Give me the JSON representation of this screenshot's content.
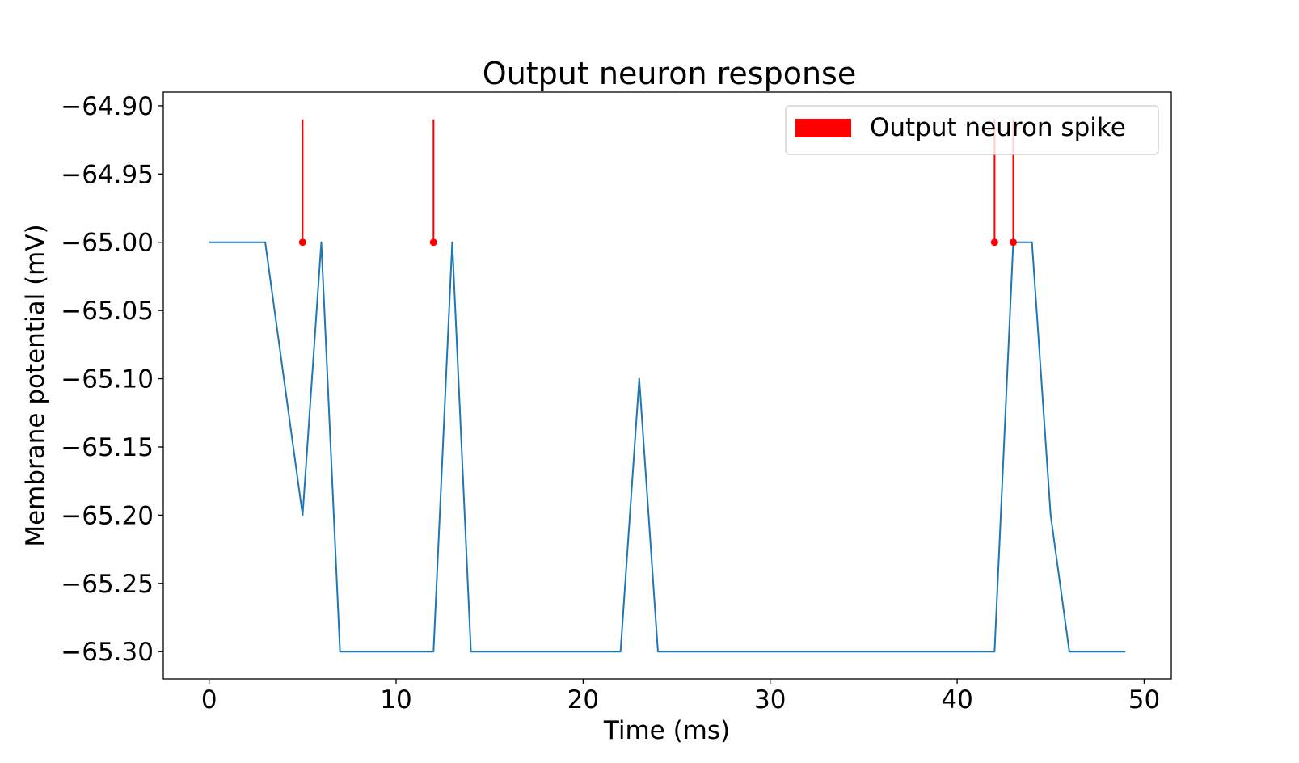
{
  "chart_data": {
    "type": "line",
    "title": "Output neuron response",
    "xlabel": "Time (ms)",
    "ylabel": "Membrane potential (mV)",
    "xlim": [
      -2.45,
      51.45
    ],
    "ylim": [
      -65.32,
      -64.89
    ],
    "xticks": [
      0,
      10,
      20,
      30,
      40,
      50
    ],
    "xtick_labels": [
      "0",
      "10",
      "20",
      "30",
      "40",
      "50"
    ],
    "yticks": [
      -64.9,
      -64.95,
      -65.0,
      -65.05,
      -65.1,
      -65.15,
      -65.2,
      -65.25,
      -65.3
    ],
    "ytick_labels": [
      "−64.90",
      "−64.95",
      "−65.00",
      "−65.05",
      "−65.10",
      "−65.15",
      "−65.20",
      "−65.25",
      "−65.30"
    ],
    "grid": false,
    "legend_position": "top-right",
    "series": [
      {
        "color": "#1f77b4",
        "x": [
          0,
          1,
          2,
          3,
          4,
          5,
          6,
          7,
          8,
          9,
          10,
          11,
          12,
          13,
          14,
          15,
          16,
          17,
          18,
          19,
          20,
          21,
          22,
          23,
          24,
          25,
          26,
          27,
          28,
          29,
          30,
          31,
          32,
          33,
          34,
          35,
          36,
          37,
          38,
          39,
          40,
          41,
          42,
          43,
          44,
          45,
          46,
          47,
          48,
          49
        ],
        "y": [
          -65.0,
          -65.0,
          -65.0,
          -65.0,
          -65.1,
          -65.2,
          -65.0,
          -65.3,
          -65.3,
          -65.3,
          -65.3,
          -65.3,
          -65.3,
          -65.0,
          -65.3,
          -65.3,
          -65.3,
          -65.3,
          -65.3,
          -65.3,
          -65.3,
          -65.3,
          -65.3,
          -65.1,
          -65.3,
          -65.3,
          -65.3,
          -65.3,
          -65.3,
          -65.3,
          -65.3,
          -65.3,
          -65.3,
          -65.3,
          -65.3,
          -65.3,
          -65.3,
          -65.3,
          -65.3,
          -65.3,
          -65.3,
          -65.3,
          -65.3,
          -65.0,
          -65.0,
          -65.2,
          -65.3,
          -65.3,
          -65.3,
          -65.3
        ]
      },
      {
        "name": "Output neuron spike",
        "type": "stem",
        "color": "#ff0000",
        "x": [
          5,
          12,
          42,
          43
        ],
        "y_base": -65.0,
        "y_top": -64.91
      }
    ]
  }
}
